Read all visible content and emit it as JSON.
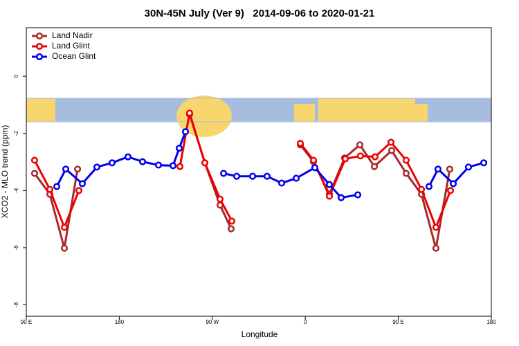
{
  "chart_data": {
    "type": "line",
    "title": "30N-45N July (Ver 9)   2014-09-06 to 2020-01-21",
    "x_label": "Longitude",
    "y_label": "XCO2 - MLO trend (ppm)",
    "xlim": [
      90,
      540
    ],
    "xticks": [
      {
        "value": 90,
        "label": "90 E"
      },
      180,
      {
        "value": 270,
        "label": "90 W"
      },
      {
        "value": 360,
        "label": "0"
      },
      {
        "value": 450,
        "label": "90 E"
      },
      {
        "value": 540,
        "label": "180"
      }
    ],
    "ylim": [
      -8.4,
      1.7
    ],
    "yticks": [
      0,
      -2,
      -4,
      -6,
      -8
    ],
    "legend": "top-left",
    "series": [
      {
        "name": "Land Nadir",
        "color": "#a52a2a",
        "x": [
          98,
          112.8,
          126.8,
          139.6,
          null,
          248,
          262.8,
          277.5,
          288.2,
          null,
          355.2,
          367.9,
          383.3,
          398,
          412.8,
          426.8,
          443.6,
          457.6,
          472.4,
          486.4,
          499.8
        ],
        "values": [
          -3.4,
          -4.13,
          -6.02,
          -3.25,
          null,
          -1.33,
          -3.03,
          -4.51,
          -5.34,
          null,
          -2.4,
          -2.99,
          -4.13,
          -2.86,
          -2.4,
          -3.16,
          -2.6,
          -3.4,
          -4.13,
          -6.02,
          -3.25
        ]
      },
      {
        "name": "Land Glint",
        "color": "#ee0000",
        "x": [
          98,
          112.8,
          126.8,
          140.9,
          null,
          238.7,
          248,
          262.8,
          277.5,
          288.9,
          null,
          355.2,
          367.9,
          383.3,
          398.7,
          413.4,
          427.5,
          442.9,
          457.6,
          472.4,
          486.4,
          500.5
        ],
        "values": [
          -2.94,
          -3.96,
          -5.29,
          -4.0,
          null,
          -3.16,
          -1.29,
          -3.03,
          -4.3,
          -5.07,
          null,
          -2.35,
          -2.94,
          -4.2,
          -2.89,
          -2.79,
          -2.82,
          -2.31,
          -2.94,
          -3.96,
          -5.29,
          -4.0
        ]
      },
      {
        "name": "Ocean Glint",
        "color": "#0000ee",
        "x": [
          119.5,
          128.2,
          144.2,
          158.3,
          173,
          188.4,
          202.5,
          217.9,
          232,
          238,
          244,
          null,
          280.9,
          293.6,
          309,
          323,
          337.1,
          351.2,
          369.2,
          383.3,
          394.7,
          410.8,
          null,
          479.7,
          488.4,
          503.2,
          517.9,
          532.7
        ],
        "values": [
          -3.86,
          -3.25,
          -3.76,
          -3.18,
          -3.03,
          -2.82,
          -2.99,
          -3.11,
          -3.13,
          -2.52,
          -1.94,
          null,
          -3.4,
          -3.5,
          -3.5,
          -3.5,
          -3.74,
          -3.57,
          -3.2,
          -3.79,
          -4.25,
          -4.15,
          null,
          -3.86,
          -3.25,
          -3.76,
          -3.18,
          -3.03
        ]
      }
    ]
  }
}
